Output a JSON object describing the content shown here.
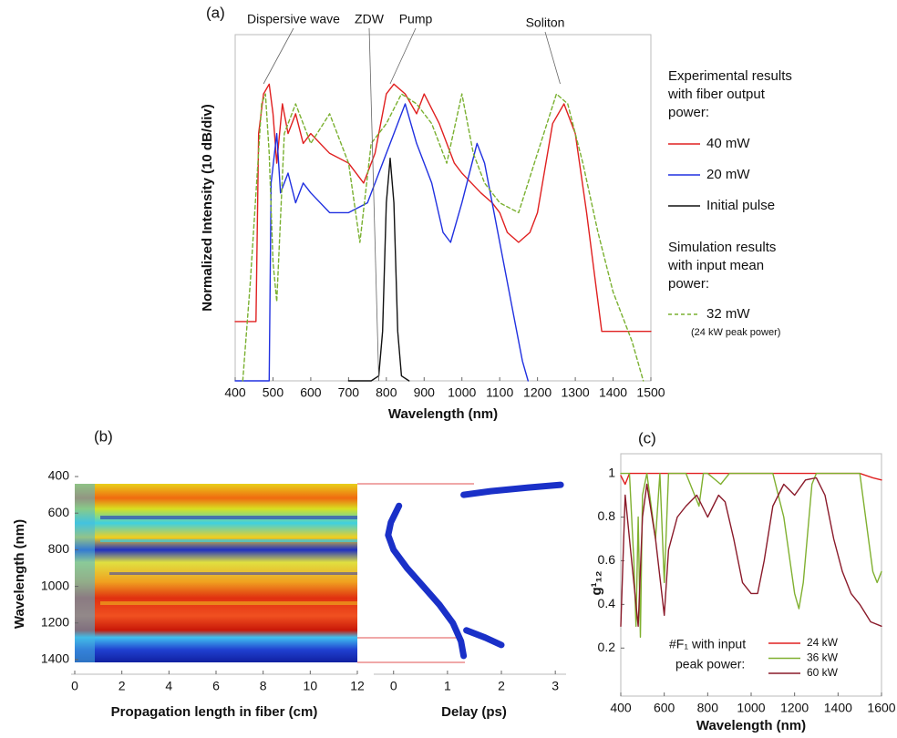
{
  "chart_data": [
    {
      "type": "line",
      "panel": "(a)",
      "x_label": "Wavelength (nm)",
      "y_label": "Normalized Intensity (10 dB/div)",
      "xlim": [
        400,
        1500
      ],
      "xticks": [
        400,
        500,
        600,
        700,
        800,
        900,
        1000,
        1100,
        1200,
        1300,
        1400,
        1500
      ],
      "ylim": [
        0,
        35
      ],
      "annotations": [
        {
          "text": "Dispersive wave",
          "x": 475
        },
        {
          "text": "ZDW",
          "x": 780
        },
        {
          "text": "Pump",
          "x": 810
        },
        {
          "text": "Soliton",
          "x": 1260
        }
      ],
      "legend_groups": [
        [
          "Experimental results",
          "with fiber output",
          "power:"
        ],
        [
          "Simulation results",
          "with input mean",
          "power:"
        ]
      ],
      "legend_note": "(24 kW peak power)",
      "series": [
        {
          "name": "40 mW",
          "color": "#e02020",
          "group": 0,
          "x": [
            400,
            455,
            462,
            475,
            490,
            500,
            510,
            525,
            540,
            560,
            580,
            600,
            650,
            700,
            740,
            770,
            800,
            820,
            850,
            880,
            900,
            940,
            980,
            1000,
            1050,
            1080,
            1100,
            1120,
            1150,
            1180,
            1200,
            1240,
            1270,
            1300,
            1330,
            1350,
            1370,
            1400,
            1500
          ],
          "values": [
            6,
            6,
            25,
            29,
            30,
            27,
            22,
            28,
            25,
            27,
            24,
            25,
            23,
            22,
            20,
            23,
            29,
            30,
            29,
            27,
            29,
            26,
            22,
            21,
            19,
            18,
            17,
            15,
            14,
            15,
            17,
            26,
            28,
            25,
            17,
            11,
            5,
            5,
            5
          ]
        },
        {
          "name": "20 mW",
          "color": "#2030e0",
          "group": 0,
          "x": [
            400,
            490,
            495,
            510,
            520,
            540,
            560,
            580,
            600,
            650,
            700,
            750,
            790,
            820,
            850,
            880,
            920,
            950,
            970,
            1000,
            1040,
            1060,
            1100,
            1130,
            1160,
            1175
          ],
          "values": [
            0,
            0,
            20,
            25,
            19,
            21,
            18,
            20,
            19,
            17,
            17,
            18,
            22,
            25,
            28,
            24,
            20,
            15,
            14,
            18,
            24,
            22,
            14,
            8,
            2,
            0
          ]
        },
        {
          "name": "Initial pulse",
          "color": "#111111",
          "group": 0,
          "x": [
            700,
            760,
            780,
            790,
            800,
            810,
            820,
            830,
            840,
            860
          ],
          "values": [
            0,
            0,
            0.5,
            5,
            18,
            22.5,
            18,
            5,
            0.5,
            0
          ]
        },
        {
          "name": "32 mW",
          "color": "#7ab030",
          "dashed": true,
          "group": 1,
          "x": [
            420,
            440,
            460,
            470,
            480,
            490,
            500,
            510,
            530,
            560,
            600,
            650,
            700,
            730,
            760,
            800,
            840,
            880,
            920,
            960,
            1000,
            1030,
            1060,
            1100,
            1150,
            1200,
            1250,
            1280,
            1320,
            1360,
            1400,
            1450,
            1480
          ],
          "values": [
            0,
            10,
            22,
            28,
            29,
            23,
            12,
            8,
            25,
            28,
            24,
            27,
            22,
            14,
            24,
            26,
            29,
            28,
            26,
            22,
            29,
            23,
            20,
            18,
            17,
            23,
            29,
            28,
            22,
            15,
            9,
            4,
            0
          ]
        }
      ]
    },
    {
      "type": "heatmap",
      "panel": "(b)",
      "x_label": "Propagation length in fiber (cm)",
      "y_label": "Wavelength (nm)",
      "xlim": [
        0,
        12
      ],
      "xticks": [
        0,
        2,
        4,
        6,
        8,
        10,
        12
      ],
      "ylim": [
        360,
        1480
      ],
      "y_inverted": true,
      "yticks": [
        400,
        600,
        800,
        1000,
        1200,
        1400
      ]
    },
    {
      "type": "line",
      "x_label": "Delay (ps)",
      "xlim": [
        -0.3,
        3.2
      ],
      "xticks": [
        0,
        1,
        2,
        3
      ],
      "ylim": [
        360,
        1480
      ],
      "y_inverted": true,
      "series": [
        {
          "color": "#1a30c8",
          "width": 7,
          "x": [
            1.3,
            1.8,
            2.5,
            3.1,
            null,
            0.1,
            -0.05,
            -0.1,
            0,
            0.25,
            0.55,
            0.85,
            1.1,
            1.25,
            1.3,
            null,
            1.35,
            1.7,
            2.0
          ],
          "values": [
            500,
            480,
            460,
            445,
            null,
            560,
            650,
            720,
            800,
            900,
            1000,
            1100,
            1200,
            1300,
            1380,
            null,
            1240,
            1280,
            1320
          ]
        }
      ]
    },
    {
      "type": "line",
      "panel": "(c)",
      "x_label": "Wavelength (nm)",
      "y_label": "g¹₁₂",
      "xlim": [
        400,
        1600
      ],
      "xticks": [
        400,
        600,
        800,
        1000,
        1200,
        1400,
        1600
      ],
      "ylim": [
        -0.02,
        1.09
      ],
      "yticks": [
        0.2,
        0.4,
        0.6,
        0.8,
        1
      ],
      "legend_title": [
        "#F₁ with input",
        "peak power:"
      ],
      "series": [
        {
          "name": "24 kW",
          "color": "#e02020",
          "x": [
            400,
            420,
            440,
            600,
            1500,
            1560,
            1600
          ],
          "values": [
            0.99,
            0.95,
            1,
            1,
            1,
            0.98,
            0.97
          ]
        },
        {
          "name": "36 kW",
          "color": "#80b030",
          "x": [
            400,
            440,
            460,
            470,
            480,
            490,
            500,
            520,
            560,
            580,
            600,
            620,
            700,
            760,
            780,
            800,
            860,
            900,
            1100,
            1150,
            1200,
            1220,
            1240,
            1280,
            1300,
            1500,
            1540,
            1560,
            1580,
            1600
          ],
          "values": [
            1,
            1,
            0.6,
            0.3,
            0.8,
            0.25,
            0.9,
            1,
            0.7,
            1,
            0.5,
            1,
            1,
            0.85,
            1,
            1,
            0.95,
            1,
            1,
            0.8,
            0.45,
            0.38,
            0.5,
            0.95,
            1,
            1,
            0.7,
            0.55,
            0.5,
            0.55
          ]
        },
        {
          "name": "60 kW",
          "color": "#8a1a2a",
          "x": [
            400,
            420,
            450,
            480,
            500,
            520,
            560,
            600,
            620,
            660,
            700,
            750,
            800,
            850,
            880,
            920,
            960,
            1000,
            1030,
            1060,
            1100,
            1150,
            1200,
            1250,
            1300,
            1340,
            1380,
            1420,
            1460,
            1500,
            1550,
            1600
          ],
          "values": [
            0.3,
            0.9,
            0.6,
            0.3,
            0.8,
            0.95,
            0.7,
            0.35,
            0.65,
            0.8,
            0.85,
            0.9,
            0.8,
            0.9,
            0.87,
            0.7,
            0.5,
            0.45,
            0.45,
            0.6,
            0.85,
            0.95,
            0.9,
            0.97,
            0.98,
            0.9,
            0.7,
            0.55,
            0.45,
            0.4,
            0.32,
            0.3
          ]
        }
      ]
    }
  ]
}
